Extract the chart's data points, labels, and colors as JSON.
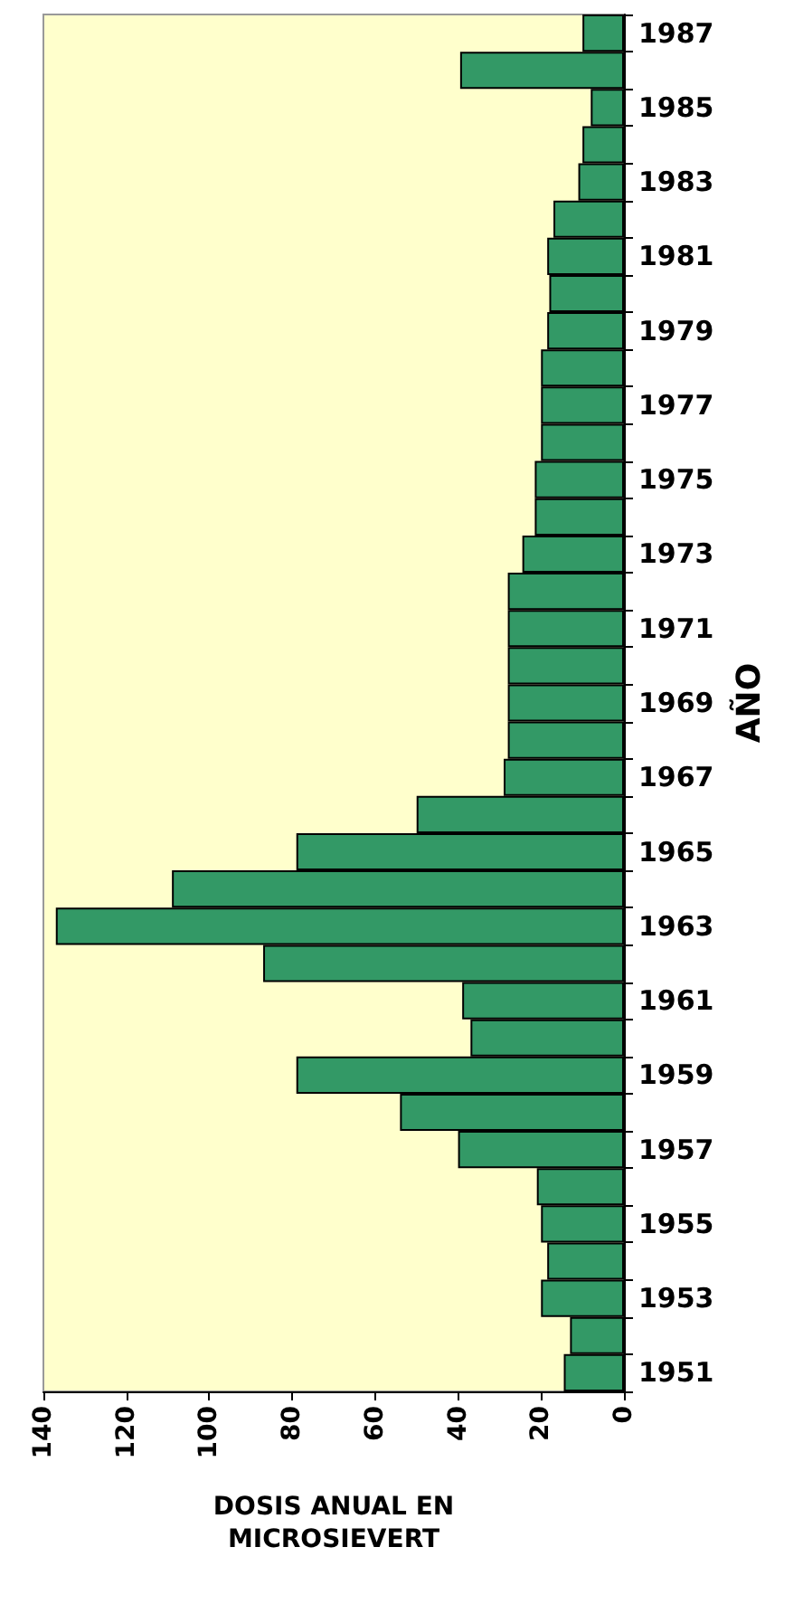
{
  "chart_data": {
    "type": "bar",
    "orientation": "horizontal",
    "xlabel": "DOSIS ANUAL EN\nMICROSIEVERT",
    "ylabel": "AÑO",
    "categories": [
      "1987",
      null,
      "1985",
      null,
      "1983",
      null,
      "1981",
      null,
      "1979",
      null,
      "1977",
      null,
      "1975",
      null,
      "1973",
      null,
      "1971",
      null,
      "1969",
      null,
      "1967",
      null,
      "1965",
      null,
      "1963",
      null,
      "1961",
      null,
      "1959",
      null,
      "1957",
      null,
      "1955",
      null,
      "1953",
      null,
      "1951"
    ],
    "values": [
      10,
      39.5,
      8,
      10,
      11,
      17,
      18.5,
      18,
      18.5,
      20,
      20,
      20,
      21.5,
      21.5,
      24.5,
      28,
      28,
      28,
      28,
      28,
      29,
      50,
      79,
      109,
      137,
      87,
      39,
      37,
      79,
      54,
      40,
      21,
      20,
      18.5,
      20,
      13,
      14.5
    ],
    "color": "#339966",
    "xlim": [
      140,
      0
    ],
    "xticks": [
      140,
      120,
      100,
      80,
      60,
      40,
      20,
      0
    ],
    "grid": false
  }
}
